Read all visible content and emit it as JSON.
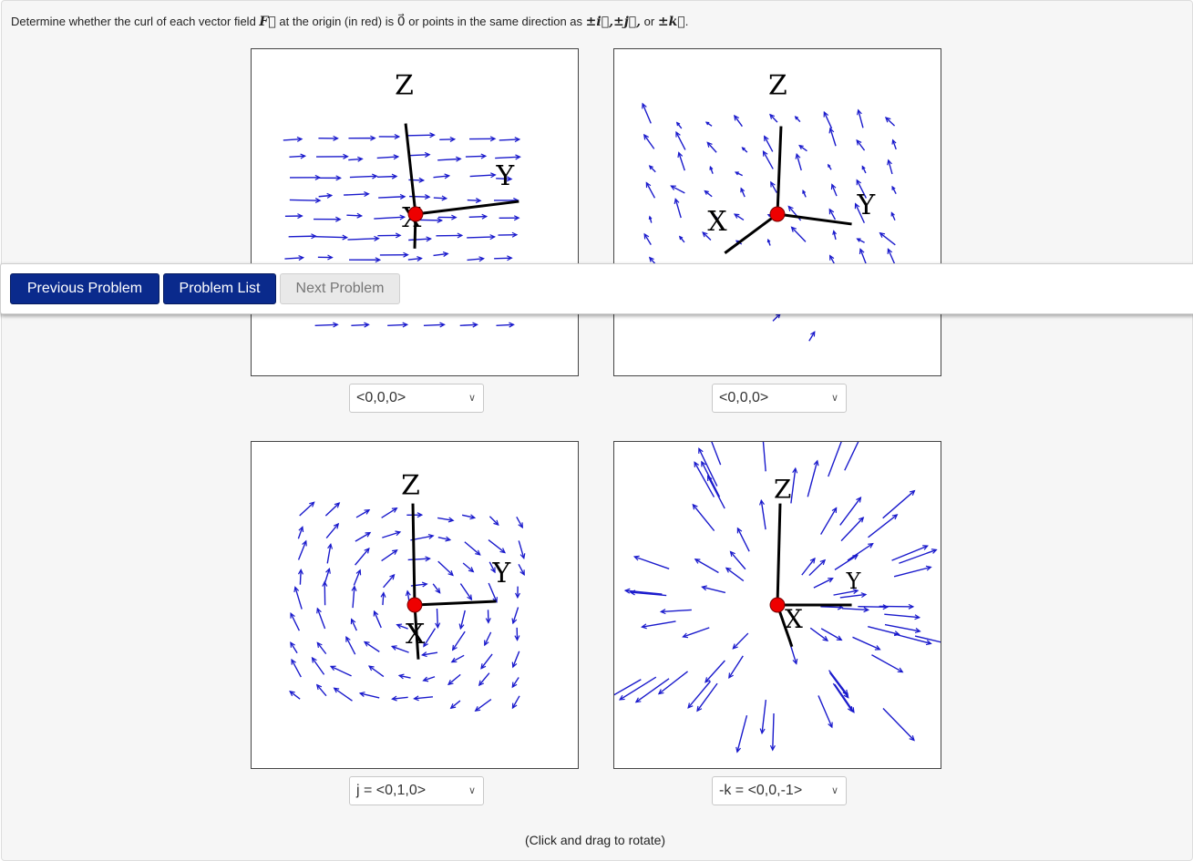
{
  "prompt": {
    "text_a": "Determine whether the curl of each vector field ",
    "F": "F⃗",
    "text_b": " at the origin (in red) is ",
    "zero": "0⃗",
    "text_c": " or points in the same direction as ",
    "i": "±i⃗,",
    "j": "±j⃗,",
    "text_d": " or ",
    "k": "±k⃗",
    "text_e": "."
  },
  "plots": [
    {
      "z_label": "Z",
      "y_label": "Y",
      "x_label": "X",
      "answer": "<0,0,0>"
    },
    {
      "z_label": "Z",
      "y_label": "Y",
      "x_label": "X",
      "answer": "<0,0,0>"
    },
    {
      "z_label": "Z",
      "y_label": "Y",
      "x_label": "X",
      "answer": "j = <0,1,0>"
    },
    {
      "z_label": "Z",
      "y_label": "Y",
      "x_label": "X",
      "answer": "-k = <0,0,-1>"
    }
  ],
  "hint": "(Click and drag to rotate)",
  "nav": {
    "previous": "Previous Problem",
    "list": "Problem List",
    "next": "Next Problem"
  },
  "colors": {
    "arrow": "#1a1acc",
    "origin": "#ee0000",
    "axis": "#000000",
    "button": "#0a2a8c"
  }
}
